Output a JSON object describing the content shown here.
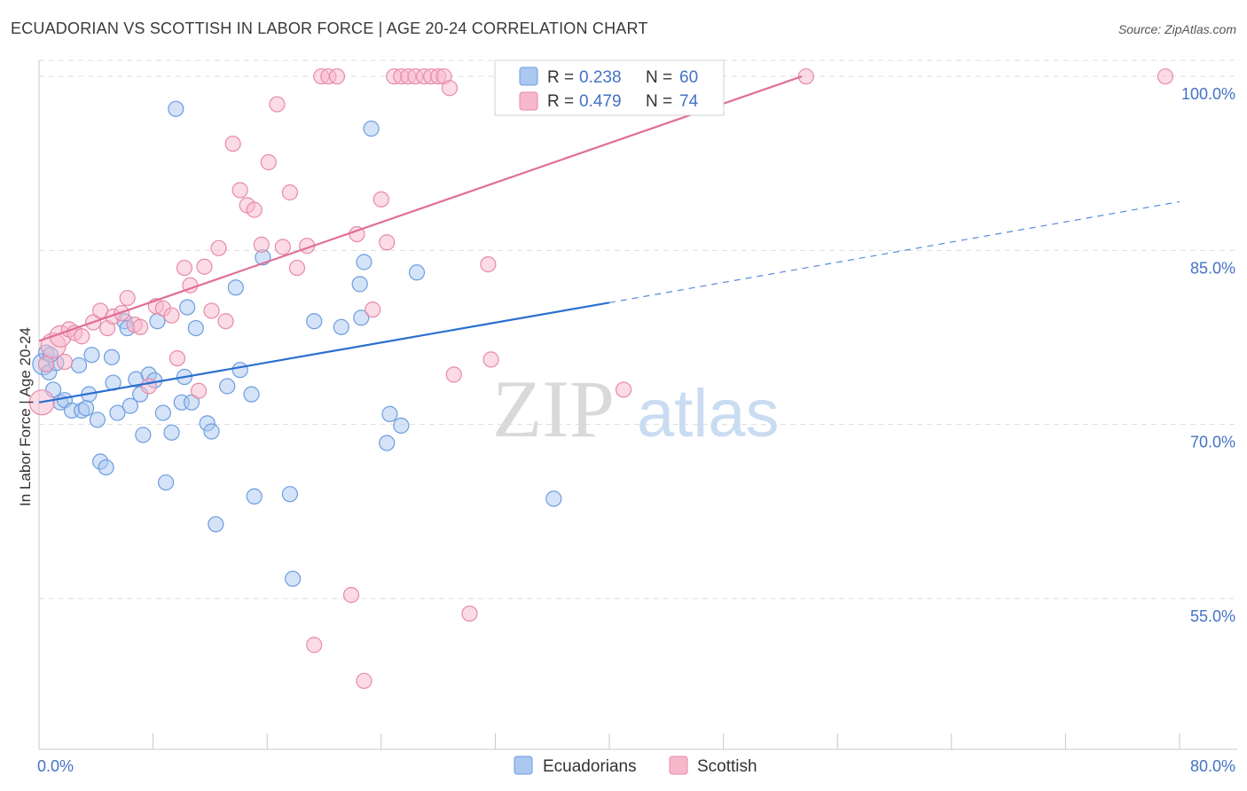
{
  "title": "ECUADORIAN VS SCOTTISH IN LABOR FORCE | AGE 20-24 CORRELATION CHART",
  "source": "Source: ZipAtlas.com",
  "watermark": {
    "zip": "ZIP",
    "atlas": "atlas"
  },
  "colors": {
    "blue_fill": "#aac8f0",
    "blue_stroke": "#6d9de0",
    "blue_line": "#2a6fcf",
    "pink_fill": "#f7b8cc",
    "pink_stroke": "#e88aa8",
    "pink_line": "#e06f96",
    "tick_label": "#4472c4",
    "grid": "#dddddd"
  },
  "chart_data": {
    "type": "scatter",
    "title": "ECUADORIAN VS SCOTTISH IN LABOR FORCE | AGE 20-24 CORRELATION CHART",
    "xlabel": "",
    "ylabel": "In Labor Force | Age 20-24",
    "xlim": [
      0,
      80
    ],
    "ylim": [
      42,
      102
    ],
    "x_tick_labels": [
      "0.0%",
      "80.0%"
    ],
    "y_ticks": [
      55,
      70,
      85,
      100
    ],
    "y_tick_labels": [
      "55.0%",
      "70.0%",
      "85.0%",
      "100.0%"
    ],
    "grid": true,
    "legend_placement": "top-center",
    "legend": [
      {
        "r_label": "R =",
        "r": "0.238",
        "n_label": "N =",
        "n": "60"
      },
      {
        "r_label": "R =",
        "r": "0.479",
        "n_label": "N =",
        "n": "74"
      }
    ],
    "series": [
      {
        "name": "Ecuadorians",
        "color": "#aac8f0",
        "trend": {
          "x": [
            0,
            40
          ],
          "y": [
            71.9,
            80.5
          ],
          "dashed_to_x": 80,
          "dashed_to_y": 89.2
        },
        "points": [
          [
            0.3,
            75.2
          ],
          [
            0.5,
            76.2
          ],
          [
            0.7,
            74.5
          ],
          [
            1.0,
            73.0
          ],
          [
            1.2,
            75.3
          ],
          [
            1.5,
            71.9
          ],
          [
            1.8,
            72.1
          ],
          [
            2.3,
            71.2
          ],
          [
            2.8,
            75.1
          ],
          [
            3.0,
            71.2
          ],
          [
            3.5,
            72.6
          ],
          [
            3.7,
            76.0
          ],
          [
            4.1,
            70.4
          ],
          [
            4.3,
            66.8
          ],
          [
            4.7,
            66.3
          ],
          [
            5.1,
            75.8
          ],
          [
            5.2,
            73.6
          ],
          [
            5.5,
            71.0
          ],
          [
            6.0,
            78.9
          ],
          [
            6.2,
            78.3
          ],
          [
            6.4,
            71.6
          ],
          [
            6.8,
            73.9
          ],
          [
            7.1,
            72.6
          ],
          [
            7.3,
            69.1
          ],
          [
            7.7,
            74.3
          ],
          [
            8.1,
            73.8
          ],
          [
            8.3,
            78.9
          ],
          [
            8.7,
            71.0
          ],
          [
            8.9,
            65.0
          ],
          [
            9.3,
            69.3
          ],
          [
            9.6,
            97.2
          ],
          [
            10.0,
            71.9
          ],
          [
            10.2,
            74.1
          ],
          [
            10.4,
            80.1
          ],
          [
            10.7,
            71.9
          ],
          [
            11.0,
            78.3
          ],
          [
            11.8,
            70.1
          ],
          [
            12.1,
            69.4
          ],
          [
            12.4,
            61.4
          ],
          [
            13.2,
            73.3
          ],
          [
            13.8,
            81.8
          ],
          [
            14.1,
            74.7
          ],
          [
            14.9,
            72.6
          ],
          [
            15.1,
            63.8
          ],
          [
            15.7,
            84.4
          ],
          [
            17.6,
            64.0
          ],
          [
            17.8,
            56.7
          ],
          [
            19.3,
            78.9
          ],
          [
            21.2,
            78.4
          ],
          [
            22.5,
            82.1
          ],
          [
            22.6,
            79.2
          ],
          [
            22.8,
            84.0
          ],
          [
            23.3,
            95.5
          ],
          [
            24.4,
            68.4
          ],
          [
            24.6,
            70.9
          ],
          [
            25.4,
            69.9
          ],
          [
            26.5,
            83.1
          ],
          [
            36.1,
            63.6
          ],
          [
            0.8,
            76.0
          ],
          [
            3.3,
            71.4
          ]
        ]
      },
      {
        "name": "Scottish",
        "color": "#f7b8cc",
        "trend": {
          "x": [
            0,
            53.5
          ],
          "y": [
            77.2,
            100.0
          ]
        },
        "points": [
          [
            0.2,
            71.9
          ],
          [
            0.5,
            75.2
          ],
          [
            1.0,
            76.8
          ],
          [
            1.5,
            77.6
          ],
          [
            1.8,
            75.4
          ],
          [
            2.1,
            78.2
          ],
          [
            2.5,
            77.9
          ],
          [
            3.0,
            77.6
          ],
          [
            3.8,
            78.8
          ],
          [
            4.3,
            79.8
          ],
          [
            4.8,
            78.3
          ],
          [
            5.2,
            79.3
          ],
          [
            5.8,
            79.6
          ],
          [
            6.2,
            80.9
          ],
          [
            6.7,
            78.6
          ],
          [
            7.1,
            78.4
          ],
          [
            7.7,
            73.3
          ],
          [
            8.2,
            80.2
          ],
          [
            8.7,
            80.0
          ],
          [
            9.3,
            79.4
          ],
          [
            9.7,
            75.7
          ],
          [
            10.2,
            83.5
          ],
          [
            10.6,
            82.0
          ],
          [
            11.2,
            72.9
          ],
          [
            11.6,
            83.6
          ],
          [
            12.1,
            79.8
          ],
          [
            12.6,
            85.2
          ],
          [
            13.1,
            78.9
          ],
          [
            13.6,
            94.2
          ],
          [
            14.1,
            90.2
          ],
          [
            14.6,
            88.9
          ],
          [
            15.1,
            88.5
          ],
          [
            15.6,
            85.5
          ],
          [
            16.1,
            92.6
          ],
          [
            16.7,
            97.6
          ],
          [
            17.1,
            85.3
          ],
          [
            17.6,
            90.0
          ],
          [
            18.1,
            83.5
          ],
          [
            18.8,
            85.4
          ],
          [
            19.3,
            51.0
          ],
          [
            19.8,
            100.0
          ],
          [
            20.3,
            100.0
          ],
          [
            20.9,
            100.0
          ],
          [
            21.9,
            55.3
          ],
          [
            22.3,
            86.4
          ],
          [
            22.8,
            47.9
          ],
          [
            23.4,
            79.9
          ],
          [
            24.0,
            89.4
          ],
          [
            24.4,
            85.7
          ],
          [
            24.9,
            100.0
          ],
          [
            25.4,
            100.0
          ],
          [
            25.9,
            100.0
          ],
          [
            26.4,
            100.0
          ],
          [
            27.0,
            100.0
          ],
          [
            27.5,
            100.0
          ],
          [
            28.0,
            100.0
          ],
          [
            28.4,
            100.0
          ],
          [
            28.8,
            99.0
          ],
          [
            29.1,
            74.3
          ],
          [
            30.2,
            53.7
          ],
          [
            31.5,
            83.8
          ],
          [
            31.7,
            75.6
          ],
          [
            33.0,
            100.0
          ],
          [
            34.0,
            100.0
          ],
          [
            37.2,
            100.0
          ],
          [
            38.0,
            100.0
          ],
          [
            40.1,
            100.0
          ],
          [
            41.0,
            73.0
          ],
          [
            44.0,
            100.0
          ],
          [
            45.2,
            100.0
          ],
          [
            47.5,
            100.0
          ],
          [
            53.8,
            100.0
          ],
          [
            79.0,
            100.0
          ],
          [
            35.5,
            100.0
          ]
        ]
      }
    ]
  }
}
